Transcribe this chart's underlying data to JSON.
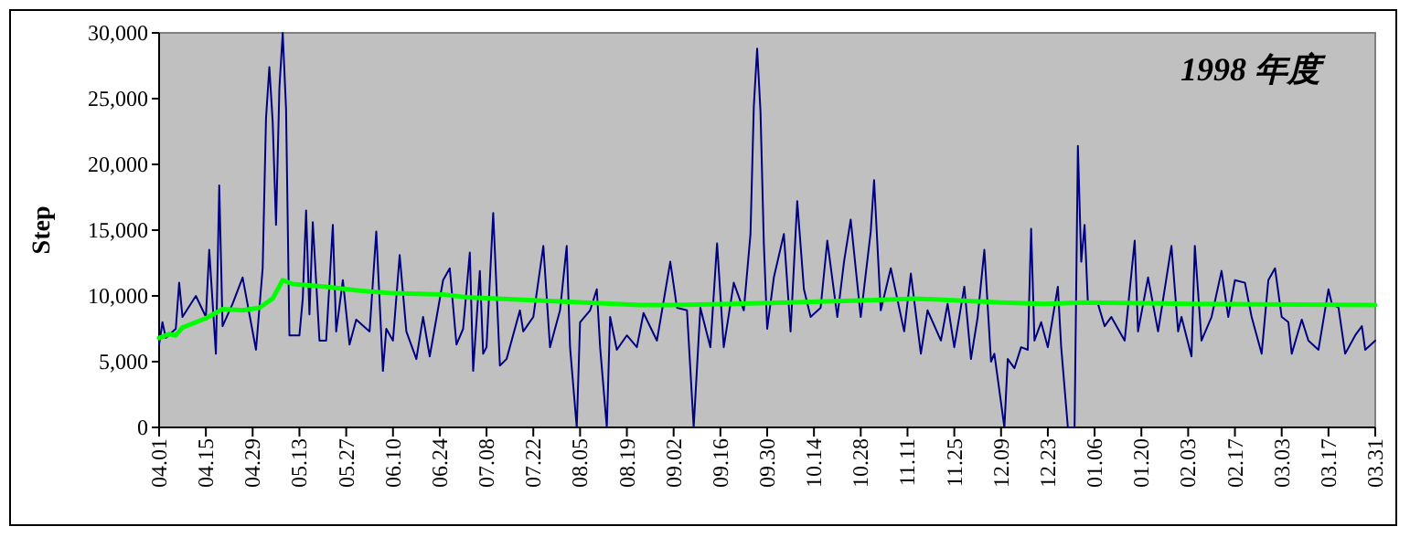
{
  "chart_data": {
    "type": "line",
    "title": "1998 年度",
    "ylabel": "Step",
    "xlim": [
      "1998-04-01",
      "1999-03-31"
    ],
    "xticks": [
      {
        "value": "1998-04-01",
        "label": "04.01"
      },
      {
        "value": "1998-04-15",
        "label": "04.15"
      },
      {
        "value": "1998-04-29",
        "label": "04.29"
      },
      {
        "value": "1998-05-13",
        "label": "05.13"
      },
      {
        "value": "1998-05-27",
        "label": "05.27"
      },
      {
        "value": "1998-06-10",
        "label": "06.10"
      },
      {
        "value": "1998-06-24",
        "label": "06.24"
      },
      {
        "value": "1998-07-08",
        "label": "07.08"
      },
      {
        "value": "1998-07-22",
        "label": "07.22"
      },
      {
        "value": "1998-08-05",
        "label": "08.05"
      },
      {
        "value": "1998-08-19",
        "label": "08.19"
      },
      {
        "value": "1998-09-02",
        "label": "09.02"
      },
      {
        "value": "1998-09-16",
        "label": "09.16"
      },
      {
        "value": "1998-09-30",
        "label": "09.30"
      },
      {
        "value": "1998-10-14",
        "label": "10.14"
      },
      {
        "value": "1998-10-28",
        "label": "10.28"
      },
      {
        "value": "1998-11-11",
        "label": "11.11"
      },
      {
        "value": "1998-11-25",
        "label": "11.25"
      },
      {
        "value": "1998-12-09",
        "label": "12.09"
      },
      {
        "value": "1998-12-23",
        "label": "12.23"
      },
      {
        "value": "1999-01-06",
        "label": "01.06"
      },
      {
        "value": "1999-01-20",
        "label": "01.20"
      },
      {
        "value": "1999-02-03",
        "label": "02.03"
      },
      {
        "value": "1999-02-17",
        "label": "02.17"
      },
      {
        "value": "1999-03-03",
        "label": "03.03"
      },
      {
        "value": "1999-03-17",
        "label": "03.17"
      },
      {
        "value": "1999-03-31",
        "label": "03.31"
      }
    ],
    "ylim": [
      0,
      30000
    ],
    "yticks": [
      {
        "value": 0,
        "label": "0"
      },
      {
        "value": 5000,
        "label": "5,000"
      },
      {
        "value": 10000,
        "label": "10,000"
      },
      {
        "value": 15000,
        "label": "15,000"
      },
      {
        "value": 20000,
        "label": "20,000"
      },
      {
        "value": 25000,
        "label": "25,000"
      },
      {
        "value": 30000,
        "label": "30,000"
      }
    ],
    "series": [
      {
        "color": "#000080",
        "x": [
          "1998-04-01",
          "1998-04-02",
          "1998-04-03",
          "1998-04-06",
          "1998-04-07",
          "1998-04-08",
          "1998-04-12",
          "1998-04-15",
          "1998-04-16",
          "1998-04-18",
          "1998-04-19",
          "1998-04-20",
          "1998-04-23",
          "1998-04-26",
          "1998-04-30",
          "1998-05-02",
          "1998-05-03",
          "1998-05-04",
          "1998-05-05",
          "1998-05-06",
          "1998-05-07",
          "1998-05-08",
          "1998-05-09",
          "1998-05-10",
          "1998-05-13",
          "1998-05-14",
          "1998-05-15",
          "1998-05-16",
          "1998-05-17",
          "1998-05-19",
          "1998-05-21",
          "1998-05-23",
          "1998-05-24",
          "1998-05-26",
          "1998-05-28",
          "1998-05-30",
          "1998-06-03",
          "1998-06-05",
          "1998-06-07",
          "1998-06-08",
          "1998-06-10",
          "1998-06-12",
          "1998-06-14",
          "1998-06-17",
          "1998-06-19",
          "1998-06-21",
          "1998-06-25",
          "1998-06-27",
          "1998-06-29",
          "1998-07-01",
          "1998-07-03",
          "1998-07-04",
          "1998-07-06",
          "1998-07-07",
          "1998-07-08",
          "1998-07-10",
          "1998-07-12",
          "1998-07-14",
          "1998-07-18",
          "1998-07-19",
          "1998-07-22",
          "1998-07-25",
          "1998-07-27",
          "1998-07-30",
          "1998-08-01",
          "1998-08-02",
          "1998-08-04",
          "1998-08-05",
          "1998-08-08",
          "1998-08-10",
          "1998-08-11",
          "1998-08-13",
          "1998-08-14",
          "1998-08-16",
          "1998-08-19",
          "1998-08-22",
          "1998-08-24",
          "1998-08-28",
          "1998-09-01",
          "1998-09-03",
          "1998-09-06",
          "1998-09-08",
          "1998-09-10",
          "1998-09-13",
          "1998-09-15",
          "1998-09-17",
          "1998-09-20",
          "1998-09-23",
          "1998-09-25",
          "1998-09-26",
          "1998-09-27",
          "1998-09-28",
          "1998-09-29",
          "1998-09-30",
          "1998-10-02",
          "1998-10-05",
          "1998-10-07",
          "1998-10-09",
          "1998-10-11",
          "1998-10-13",
          "1998-10-16",
          "1998-10-18",
          "1998-10-21",
          "1998-10-23",
          "1998-10-25",
          "1998-10-28",
          "1998-10-31",
          "1998-11-01",
          "1998-11-03",
          "1998-11-06",
          "1998-11-10",
          "1998-11-12",
          "1998-11-15",
          "1998-11-17",
          "1998-11-21",
          "1998-11-23",
          "1998-11-25",
          "1998-11-28",
          "1998-11-30",
          "1998-12-02",
          "1998-12-04",
          "1998-12-06",
          "1998-12-07",
          "1998-12-10",
          "1998-12-11",
          "1998-12-13",
          "1998-12-15",
          "1998-12-17",
          "1998-12-18",
          "1998-12-19",
          "1998-12-21",
          "1998-12-23",
          "1998-12-26",
          "1998-12-27",
          "1998-12-29",
          "1998-12-31",
          "1999-01-01",
          "1999-01-02",
          "1999-01-03",
          "1999-01-04",
          "1999-01-07",
          "1999-01-09",
          "1999-01-11",
          "1999-01-15",
          "1999-01-18",
          "1999-01-19",
          "1999-01-22",
          "1999-01-25",
          "1999-01-29",
          "1999-01-31",
          "1999-02-01",
          "1999-02-04",
          "1999-02-05",
          "1999-02-07",
          "1999-02-10",
          "1999-02-13",
          "1999-02-15",
          "1999-02-17",
          "1999-02-20",
          "1999-02-22",
          "1999-02-25",
          "1999-02-27",
          "1999-03-01",
          "1999-03-03",
          "1999-03-05",
          "1999-03-06",
          "1999-03-09",
          "1999-03-11",
          "1999-03-14",
          "1999-03-17",
          "1999-03-18",
          "1999-03-20",
          "1999-03-22",
          "1999-03-25",
          "1999-03-27",
          "1999-03-28",
          "1999-03-31"
        ],
        "values": [
          6300,
          8000,
          6800,
          7500,
          11000,
          8400,
          10000,
          8400,
          13500,
          5600,
          18400,
          7700,
          9400,
          11400,
          5900,
          12100,
          23500,
          27400,
          23200,
          15400,
          25800,
          30000,
          24200,
          7000,
          7000,
          9800,
          16500,
          8600,
          15600,
          6600,
          6600,
          15400,
          7300,
          11200,
          6300,
          8200,
          7300,
          14900,
          4300,
          7500,
          6600,
          13100,
          7300,
          5200,
          8400,
          5400,
          11200,
          12100,
          6300,
          7500,
          13300,
          4300,
          11900,
          5600,
          6100,
          16300,
          4700,
          5200,
          8900,
          7300,
          8400,
          13800,
          6100,
          8900,
          13800,
          6100,
          0,
          8000,
          8900,
          10500,
          6100,
          0,
          8400,
          5900,
          7000,
          6100,
          8700,
          6600,
          12600,
          9100,
          8900,
          0,
          9100,
          6100,
          14000,
          6100,
          11000,
          8900,
          14700,
          24400,
          28800,
          24000,
          14000,
          7500,
          11400,
          14700,
          7300,
          17200,
          10500,
          8400,
          9100,
          14200,
          8400,
          12600,
          15800,
          8400,
          14900,
          18800,
          8900,
          12100,
          7300,
          11700,
          5600,
          8900,
          6600,
          9400,
          6100,
          10700,
          5200,
          8400,
          13500,
          5000,
          5600,
          0,
          5200,
          4500,
          6100,
          5900,
          15100,
          6600,
          8000,
          6100,
          10700,
          6100,
          0,
          0,
          21400,
          12600,
          15400,
          9400,
          9400,
          7700,
          8400,
          6600,
          14200,
          7300,
          11400,
          7300,
          13800,
          7300,
          8400,
          5400,
          13800,
          6600,
          8400,
          11900,
          8400,
          11200,
          11000,
          8400,
          5600,
          11200,
          12100,
          8400,
          8000,
          5600,
          8200,
          6600,
          5900,
          10500,
          9400,
          9100,
          5600,
          7000,
          7700,
          5900,
          6600
        ]
      },
      {
        "color": "#00ff00",
        "x": [
          "1998-04-01",
          "1998-04-04",
          "1998-04-06",
          "1998-04-08",
          "1998-04-15",
          "1998-04-20",
          "1998-04-26",
          "1998-05-01",
          "1998-05-05",
          "1998-05-08",
          "1998-05-11",
          "1998-05-21",
          "1998-05-31",
          "1998-06-10",
          "1998-06-25",
          "1998-07-02",
          "1998-08-23",
          "1998-09-01",
          "1998-09-19",
          "1998-10-06",
          "1998-11-04",
          "1998-11-13",
          "1998-12-09",
          "1998-12-22",
          "1999-01-03",
          "1999-02-03",
          "1999-03-31"
        ],
        "values": [
          6800,
          7100,
          7000,
          7600,
          8300,
          9000,
          8900,
          9100,
          9800,
          11200,
          10900,
          10700,
          10400,
          10200,
          10100,
          9900,
          9300,
          9300,
          9400,
          9500,
          9700,
          9800,
          9500,
          9400,
          9500,
          9400,
          9300
        ]
      }
    ]
  }
}
